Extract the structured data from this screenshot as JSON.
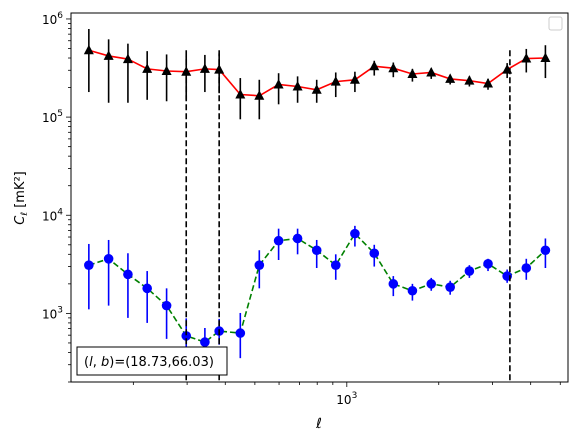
{
  "chart_data": {
    "type": "line",
    "title": "",
    "xlabel": "ℓ",
    "ylabel_main": "C",
    "ylabel_sub": "ℓ",
    "ylabel_unit": "[mK²]",
    "xscale": "log",
    "yscale": "log",
    "xlim": [
      125,
      5300
    ],
    "ylim": [
      200,
      1150000
    ],
    "x_tick_labels": [
      {
        "value": 1000,
        "base": "10",
        "exp": "3"
      }
    ],
    "y_tick_labels": [
      {
        "value": 1000,
        "base": "10",
        "exp": "3"
      },
      {
        "value": 10000,
        "base": "10",
        "exp": "4"
      },
      {
        "value": 100000,
        "base": "10",
        "exp": "5"
      },
      {
        "value": 1000000,
        "base": "10",
        "exp": "6"
      }
    ],
    "vlines": [
      298,
      382,
      3420
    ],
    "legend": {
      "placement": "top-right",
      "entries": []
    },
    "annotation": {
      "text": "(l, b)=(18.73,66.03)",
      "math_l": "l",
      "math_b": "b",
      "values": "=(18.73,66.03)",
      "placement": "bottom-left"
    },
    "series": [
      {
        "color": "#ff0000",
        "marker": "triangle",
        "marker_color": "#000000",
        "errorbar_color": "#000000",
        "linestyle": "solid",
        "x": [
          143,
          166,
          192,
          222,
          257,
          298,
          343,
          382,
          448,
          517,
          598,
          690,
          797,
          920,
          1063,
          1230,
          1420,
          1640,
          1890,
          2180,
          2520,
          2900,
          3350,
          3870,
          4470
        ],
        "y": [
          480000,
          420000,
          390000,
          310000,
          295000,
          290000,
          310000,
          305000,
          170000,
          165000,
          215000,
          205000,
          190000,
          230000,
          240000,
          330000,
          315000,
          275000,
          285000,
          245000,
          235000,
          220000,
          305000,
          395000,
          400000
        ],
        "yerr_low": [
          300000,
          280000,
          250000,
          160000,
          150000,
          140000,
          130000,
          130000,
          75000,
          70000,
          80000,
          65000,
          50000,
          70000,
          60000,
          65000,
          60000,
          45000,
          40000,
          30000,
          30000,
          30000,
          55000,
          110000,
          150000
        ],
        "yerr_high": [
          310000,
          200000,
          170000,
          160000,
          140000,
          130000,
          120000,
          140000,
          80000,
          75000,
          65000,
          55000,
          50000,
          55000,
          50000,
          45000,
          45000,
          35000,
          30000,
          25000,
          25000,
          25000,
          50000,
          100000,
          140000
        ]
      },
      {
        "color": "#008000",
        "marker": "circle",
        "marker_color": "#0000ff",
        "errorbar_color": "#0000ff",
        "linestyle": "dashed",
        "x": [
          143,
          166,
          192,
          222,
          257,
          298,
          343,
          382,
          448,
          517,
          598,
          690,
          797,
          920,
          1063,
          1230,
          1420,
          1640,
          1890,
          2180,
          2520,
          2900,
          3350,
          3870,
          4470
        ],
        "y": [
          3100,
          3600,
          2500,
          1800,
          1200,
          590,
          510,
          660,
          630,
          3100,
          5500,
          5800,
          4400,
          3100,
          6500,
          4100,
          2000,
          1700,
          2000,
          1850,
          2700,
          3200,
          2400,
          2900,
          4400
        ],
        "yerr_low": [
          2000,
          2400,
          1600,
          1000,
          650,
          270,
          150,
          180,
          280,
          1300,
          2000,
          1800,
          1500,
          900,
          1700,
          1100,
          500,
          350,
          300,
          300,
          400,
          500,
          350,
          700,
          1500
        ],
        "yerr_high": [
          2000,
          2000,
          1600,
          900,
          600,
          300,
          200,
          220,
          380,
          1300,
          1800,
          1500,
          1200,
          900,
          1300,
          900,
          400,
          300,
          300,
          300,
          400,
          400,
          400,
          700,
          1400
        ]
      }
    ]
  }
}
